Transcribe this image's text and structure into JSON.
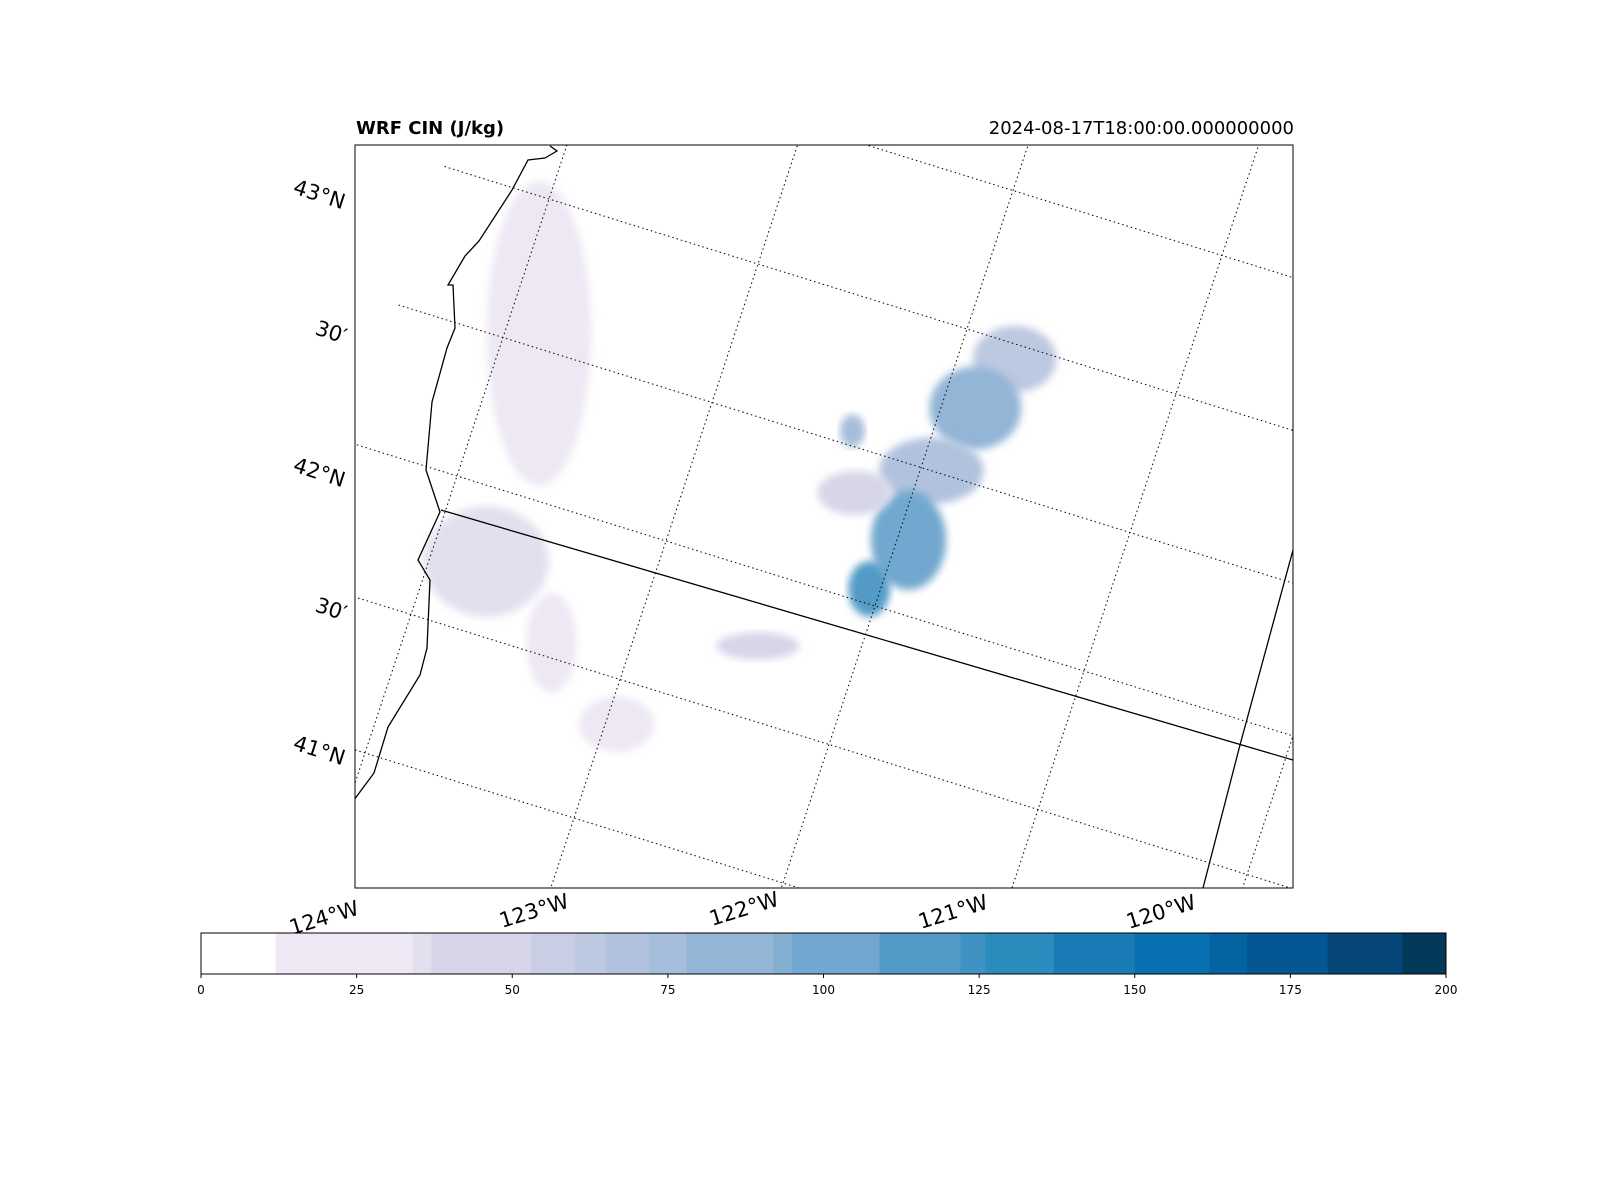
{
  "map": {
    "title": "WRF CIN (J/kg)",
    "timestamp": "2024-08-17T18:00:00.000000000",
    "lat_labels": [
      "43°N",
      "30′",
      "42°N",
      "30′",
      "41°N"
    ],
    "lon_labels": [
      "124°W",
      "123°W",
      "122°W",
      "121°W",
      "120°W"
    ],
    "gridline_style": "dotted",
    "coastline_color": "#000000",
    "state_border": "Oregon–California border (~42°N)"
  },
  "colorbar": {
    "min": 0,
    "max": 200,
    "ticks": [
      "0",
      "25",
      "50",
      "75",
      "100",
      "125",
      "150",
      "175",
      "200"
    ],
    "colormap": "PuBu",
    "levels": [
      {
        "from": 0,
        "to": 12,
        "color": "#ffffff"
      },
      {
        "from": 12,
        "to": 34,
        "color": "#ede8f3"
      },
      {
        "from": 34,
        "to": 37,
        "color": "#e2e0ee"
      },
      {
        "from": 37,
        "to": 53,
        "color": "#d7d6e9"
      },
      {
        "from": 53,
        "to": 60,
        "color": "#c9cee4"
      },
      {
        "from": 60,
        "to": 65,
        "color": "#bdc8e1"
      },
      {
        "from": 65,
        "to": 72,
        "color": "#b2c2de"
      },
      {
        "from": 72,
        "to": 78,
        "color": "#a6bddb"
      },
      {
        "from": 78,
        "to": 92,
        "color": "#93b5d6"
      },
      {
        "from": 92,
        "to": 95,
        "color": "#83aed2"
      },
      {
        "from": 95,
        "to": 109,
        "color": "#72a8cf"
      },
      {
        "from": 109,
        "to": 122,
        "color": "#529bc6"
      },
      {
        "from": 122,
        "to": 126,
        "color": "#3f92c2"
      },
      {
        "from": 126,
        "to": 137,
        "color": "#2b8cbe"
      },
      {
        "from": 137,
        "to": 150,
        "color": "#1a7cb7"
      },
      {
        "from": 150,
        "to": 162,
        "color": "#0870b0"
      },
      {
        "from": 162,
        "to": 168,
        "color": "#0464a1"
      },
      {
        "from": 168,
        "to": 181,
        "color": "#045792"
      },
      {
        "from": 181,
        "to": 193,
        "color": "#034677"
      },
      {
        "from": 193,
        "to": 200,
        "color": "#023858"
      }
    ]
  },
  "field_patches": [
    {
      "lon": -123.85,
      "lat": 42.55,
      "value": 20,
      "rx": 0.25,
      "ry": 0.55
    },
    {
      "lon": -123.75,
      "lat": 41.75,
      "value": 35,
      "rx": 0.3,
      "ry": 0.2
    },
    {
      "lon": -123.35,
      "lat": 41.55,
      "value": 22,
      "rx": 0.12,
      "ry": 0.18
    },
    {
      "lon": -122.95,
      "lat": 41.35,
      "value": 25,
      "rx": 0.18,
      "ry": 0.1
    },
    {
      "lon": -121.75,
      "lat": 42.95,
      "value": 60,
      "rx": 0.2,
      "ry": 0.12
    },
    {
      "lon": -121.85,
      "lat": 42.75,
      "value": 85,
      "rx": 0.22,
      "ry": 0.15
    },
    {
      "lon": -121.95,
      "lat": 42.5,
      "value": 70,
      "rx": 0.25,
      "ry": 0.12
    },
    {
      "lon": -121.95,
      "lat": 42.25,
      "value": 95,
      "rx": 0.18,
      "ry": 0.18
    },
    {
      "lon": -122.05,
      "lat": 42.05,
      "value": 110,
      "rx": 0.1,
      "ry": 0.1
    },
    {
      "lon": -122.25,
      "lat": 42.35,
      "value": 40,
      "rx": 0.18,
      "ry": 0.08
    },
    {
      "lon": -122.45,
      "lat": 41.75,
      "value": 40,
      "rx": 0.2,
      "ry": 0.05
    },
    {
      "lon": -122.35,
      "lat": 42.55,
      "value": 75,
      "rx": 0.06,
      "ry": 0.06
    }
  ]
}
